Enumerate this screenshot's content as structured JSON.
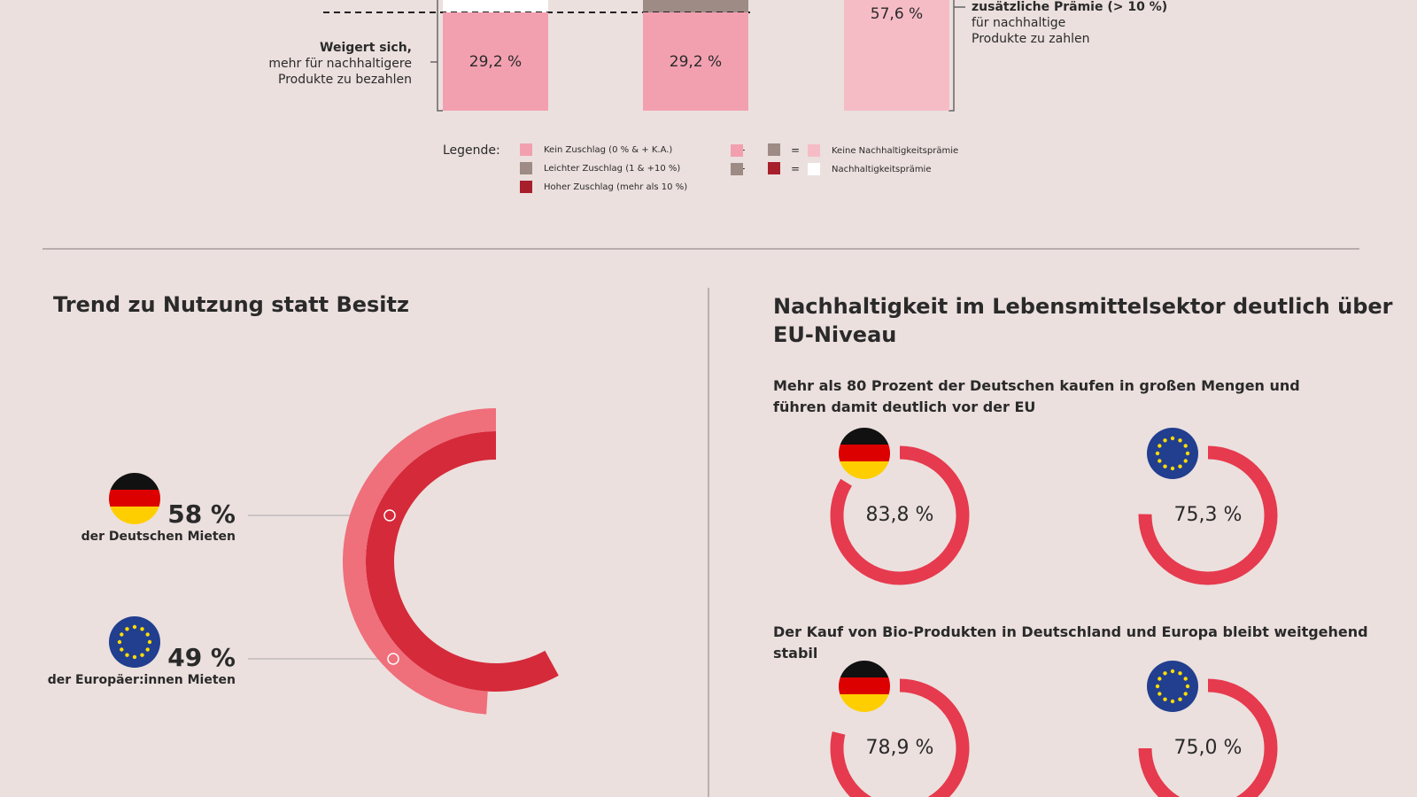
{
  "chart_data": [
    {
      "type": "bar",
      "categories": [
        null,
        null,
        null
      ],
      "values": [
        29.2,
        29.2,
        57.6
      ],
      "value_labels": [
        "29,2 %",
        "29,2 %",
        "57,6 %"
      ],
      "colors": [
        "#f2a0b0",
        "#f2a0b0",
        "#f6bcc6"
      ],
      "annotations": [
        "Weigert sich,",
        "mehr für nachhaltigere",
        "Produkte zu bezahlen",
        "zusätzliche Prämie (> 10 %)",
        "für nachhaltige",
        "Produkte zu zahlen"
      ],
      "legend_title": "Legende:",
      "legend": [
        {
          "name": "Kein Zuschlag (0 % & + K.A.)",
          "color": "#f2a0b0"
        },
        {
          "name": "Leichter Zuschlag (1 & +10 %)",
          "color": "#9e8b85"
        },
        {
          "name": "Hoher Zuschlag (mehr als 10 %)",
          "color": "#a81f2c"
        },
        {
          "name": "Keine Nachhaltigkeitsprämie",
          "color": "#f6bcc6"
        },
        {
          "name": "Nachhaltigkeitsprämie",
          "color": "#ffffff"
        }
      ]
    },
    {
      "type": "radial",
      "title": "Trend zu Nutzung statt Besitz",
      "series": [
        {
          "name": "der Deutschen Mieten",
          "value": 58,
          "value_label": "58 %",
          "color": "#d52a3a"
        },
        {
          "name": "der Europäer:innen Mieten",
          "value": 49,
          "value_label": "49 %",
          "color": "#ef6f7b"
        }
      ]
    },
    {
      "type": "donut",
      "title": "Nachhaltigkeit im Lebensmittelsektor deutlich über EU-Niveau",
      "color": "#e63a4e",
      "groups": [
        {
          "subtitle": "Mehr als 80 Prozent der Deutschen kaufen in großen Mengen und führen damit deutlich vor der EU",
          "values": [
            83.8,
            75.3
          ],
          "value_labels": [
            "83,8 %",
            "75,3 %"
          ]
        },
        {
          "subtitle": "Der Kauf von Bio-Produkten in Deutschland und Europa bleibt weitgehend stabil",
          "values": [
            78.9,
            75.0
          ],
          "value_labels": [
            "78,9 %",
            "75,0 %"
          ]
        }
      ]
    }
  ]
}
